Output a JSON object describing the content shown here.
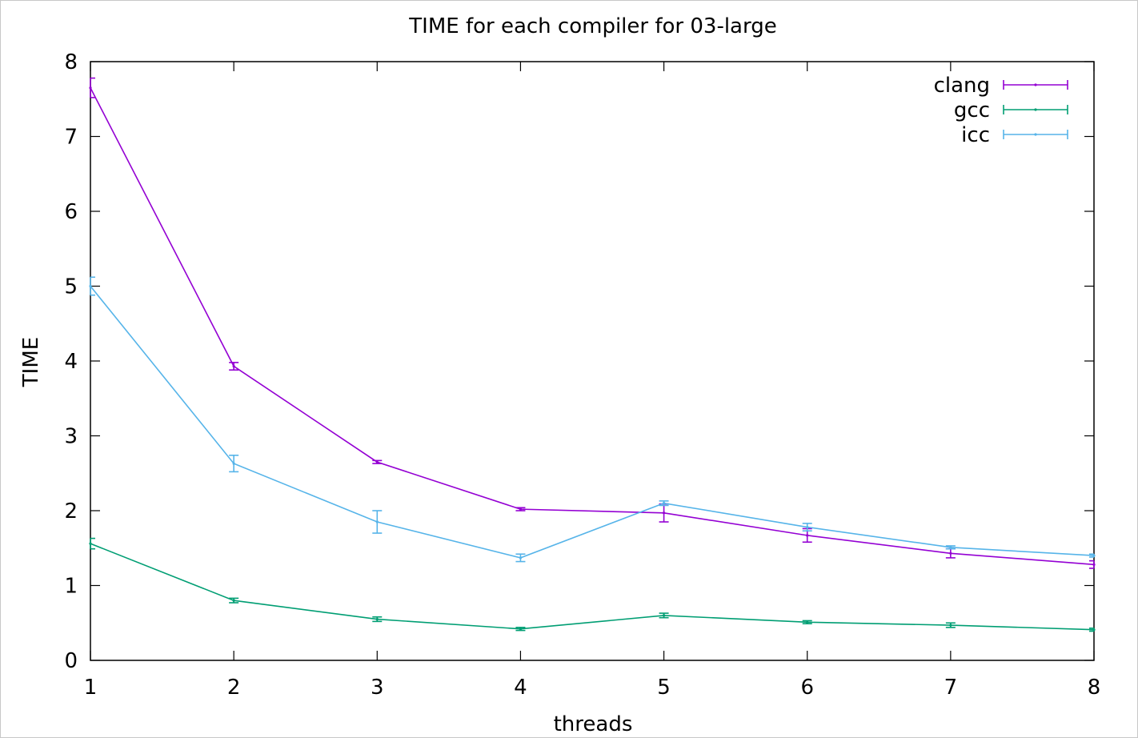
{
  "chart_data": {
    "type": "line",
    "title": "TIME for each compiler for 03-large",
    "xlabel": "threads",
    "ylabel": "TIME",
    "xlim": [
      1,
      8
    ],
    "ylim": [
      0,
      8
    ],
    "x_ticks": [
      "1",
      "2",
      "3",
      "4",
      "5",
      "6",
      "7",
      "8"
    ],
    "y_ticks": [
      "0",
      "1",
      "2",
      "3",
      "4",
      "5",
      "6",
      "7",
      "8"
    ],
    "x": [
      1,
      2,
      3,
      4,
      5,
      6,
      7,
      8
    ],
    "legend_position": "top-right",
    "grid": false,
    "series": [
      {
        "name": "clang",
        "color": "#9400d3",
        "values": [
          7.65,
          3.93,
          2.65,
          2.02,
          1.97,
          1.67,
          1.43,
          1.28
        ],
        "errors": [
          0.13,
          0.05,
          0.02,
          0.02,
          0.12,
          0.09,
          0.06,
          0.05
        ]
      },
      {
        "name": "gcc",
        "color": "#009e73",
        "values": [
          1.56,
          0.8,
          0.55,
          0.42,
          0.6,
          0.51,
          0.47,
          0.41
        ],
        "errors": [
          0.07,
          0.03,
          0.03,
          0.02,
          0.03,
          0.02,
          0.03,
          0.02
        ]
      },
      {
        "name": "icc",
        "color": "#56b4e9",
        "values": [
          5.0,
          2.63,
          1.85,
          1.37,
          2.1,
          1.78,
          1.51,
          1.4
        ],
        "errors": [
          0.12,
          0.11,
          0.15,
          0.05,
          0.03,
          0.05,
          0.02,
          0.02
        ]
      }
    ]
  }
}
